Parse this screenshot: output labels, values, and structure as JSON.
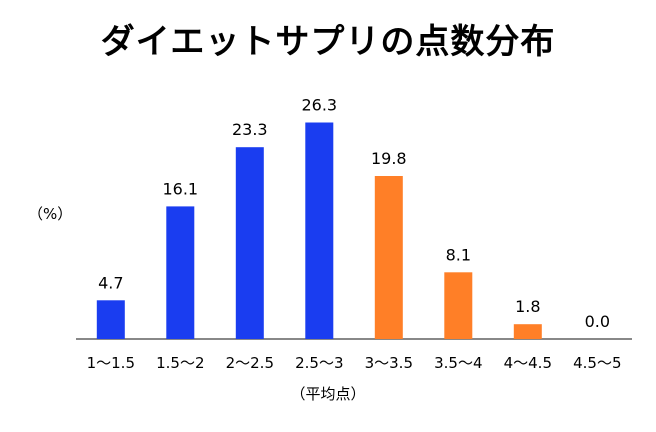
{
  "chart_data": {
    "type": "bar",
    "title": "ダイエットサプリの点数分布",
    "ylabel": "（%）",
    "xlabel": "（平均点）",
    "categories": [
      "1〜1.5",
      "1.5〜2",
      "2〜2.5",
      "2.5〜3",
      "3〜3.5",
      "3.5〜4",
      "4〜4.5",
      "4.5〜5"
    ],
    "values": [
      4.7,
      16.1,
      23.3,
      26.3,
      19.8,
      8.1,
      1.8,
      0.0
    ],
    "value_labels": [
      "4.7",
      "16.1",
      "23.3",
      "26.3",
      "19.8",
      "8.1",
      "1.8",
      "0.0"
    ],
    "bar_colors": [
      "#1a3df0",
      "#1a3df0",
      "#1a3df0",
      "#1a3df0",
      "#ff7f27",
      "#ff7f27",
      "#ff7f27",
      "#ff7f27"
    ],
    "ylim": [
      0,
      30
    ],
    "grid": false
  }
}
